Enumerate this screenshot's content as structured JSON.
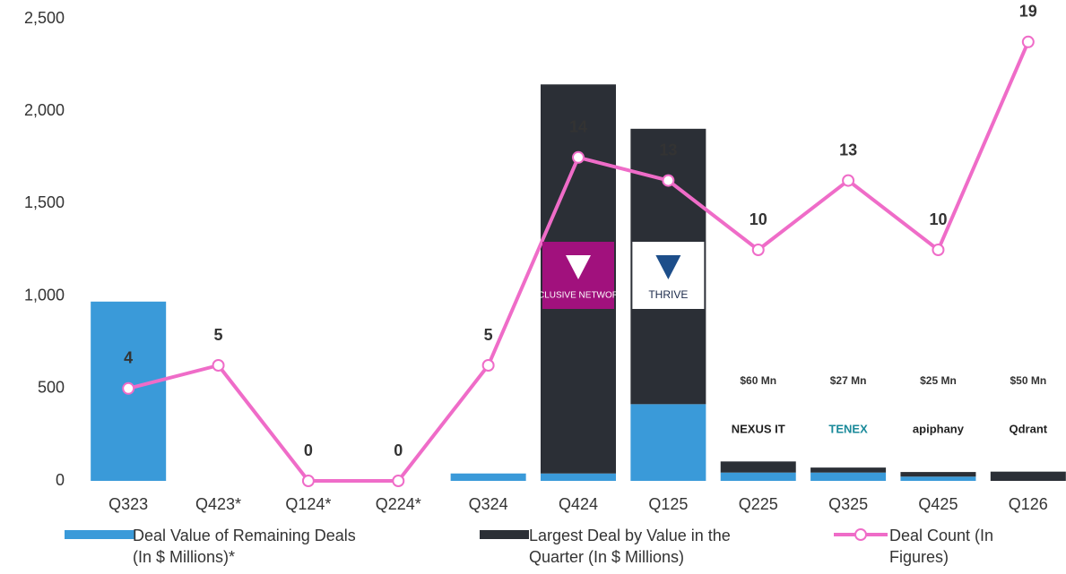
{
  "chart_data": {
    "type": "bar",
    "categories": [
      "Q323",
      "Q423*",
      "Q124*",
      "Q224*",
      "Q324",
      "Q424",
      "Q125",
      "Q225",
      "Q325",
      "Q425",
      "Q126"
    ],
    "ylim": [
      0,
      2500
    ],
    "yticks": [
      0,
      500,
      {
        "value": 1000,
        "label": "1,000"
      },
      {
        "value": 1500,
        "label": "1,500"
      },
      {
        "value": 2000,
        "label": "2,000"
      },
      {
        "value": 2500,
        "label": "2,500"
      }
    ],
    "y2lim": [
      0,
      20
    ],
    "series": [
      {
        "name": "Deal Value of Remaining Deals (In $ Millions)*",
        "type": "bar",
        "color": "#3a9ad9",
        "values": [
          970,
          0,
          0,
          0,
          40,
          40,
          415,
          45,
          45,
          23,
          0
        ]
      },
      {
        "name": "Largest Deal by Value in the Quarter (In $ Millions)",
        "type": "bar",
        "color": "#2b2f36",
        "values": [
          0,
          0,
          0,
          0,
          0,
          2105,
          1490,
          60,
          27,
          25,
          50
        ]
      },
      {
        "name": "Deal Count (In Figures)",
        "type": "line",
        "axis": "y2",
        "color": "#ef6cc8",
        "values": [
          4,
          5,
          0,
          0,
          5,
          14,
          13,
          10,
          13,
          10,
          19
        ]
      }
    ],
    "annotations": [
      {
        "category": "Q424",
        "logo": "EXCLUSIVE NETWORKS"
      },
      {
        "category": "Q125",
        "logo": "THRIVE"
      },
      {
        "category": "Q225",
        "label": "$60 Mn",
        "logo": "NEXUS IT"
      },
      {
        "category": "Q325",
        "label": "$27 Mn",
        "logo": "TENEX"
      },
      {
        "category": "Q425",
        "label": "$25 Mn",
        "logo": "apiphany"
      },
      {
        "category": "Q126",
        "label": "$50 Mn",
        "logo": "Qdrant"
      }
    ]
  }
}
